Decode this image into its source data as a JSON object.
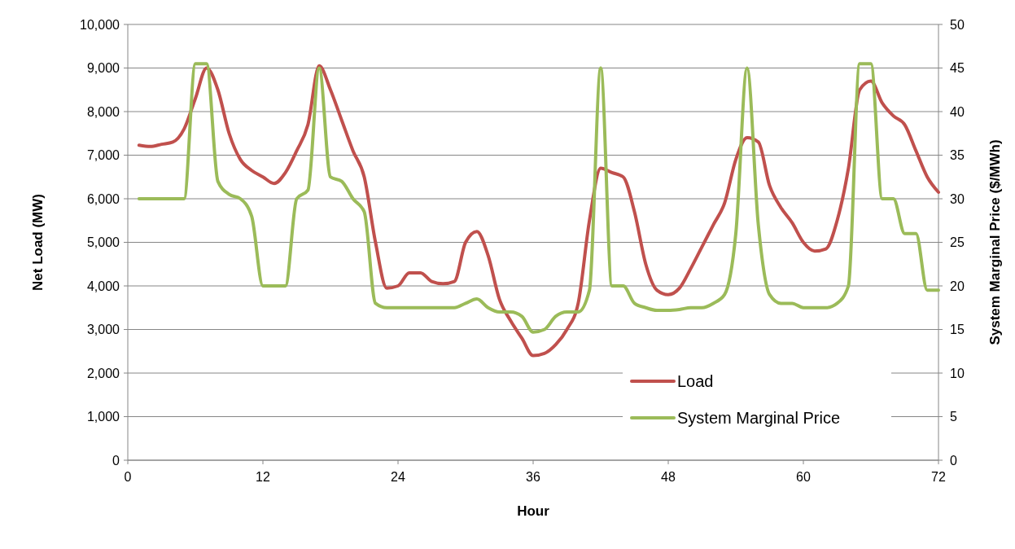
{
  "chart_data": {
    "type": "line",
    "xlabel": "Hour",
    "ylabel": "Net Load (MW)",
    "y2label": "System Marginal Price ($/MWh)",
    "x": [
      1,
      2,
      3,
      4,
      5,
      6,
      7,
      8,
      9,
      10,
      11,
      12,
      13,
      14,
      15,
      16,
      17,
      18,
      19,
      20,
      21,
      22,
      23,
      24,
      25,
      26,
      27,
      28,
      29,
      30,
      31,
      32,
      33,
      34,
      35,
      36,
      37,
      38,
      39,
      40,
      41,
      42,
      43,
      44,
      45,
      46,
      47,
      48,
      49,
      50,
      51,
      52,
      53,
      54,
      55,
      56,
      57,
      58,
      59,
      60,
      61,
      62,
      63,
      64,
      65,
      66,
      67,
      68,
      69,
      70,
      71,
      72
    ],
    "series": [
      {
        "name": "Load",
        "color": "#c0504d",
        "values": [
          7230,
          7200,
          7250,
          7300,
          7600,
          8300,
          9000,
          8500,
          7500,
          6900,
          6650,
          6500,
          6350,
          6600,
          7100,
          7700,
          9050,
          8500,
          7800,
          7100,
          6500,
          5000,
          3950,
          4000,
          4300,
          4300,
          4100,
          4050,
          4100,
          5000,
          5250,
          4700,
          3700,
          3200,
          2800,
          2400,
          2450,
          2650,
          3000,
          3600,
          5500,
          6700,
          6600,
          6500,
          5700,
          4500,
          3900,
          3800,
          3950,
          4400,
          4900,
          5400,
          5900,
          6900,
          7400,
          7300,
          6300,
          5800,
          5450,
          5000,
          4800,
          4850,
          5500,
          6700,
          8500,
          8700,
          8200,
          7900,
          7700,
          7100,
          6500,
          6150
        ]
      },
      {
        "name": "System Marginal Price",
        "color": "#9bbb59",
        "axis": "y2",
        "values": [
          30,
          30,
          30,
          30,
          30,
          45.5,
          45.5,
          32,
          30.5,
          30,
          28,
          20,
          20,
          20,
          30,
          31,
          45,
          32.5,
          32,
          30,
          28.5,
          18,
          17.5,
          17.5,
          17.5,
          17.5,
          17.5,
          17.5,
          17.5,
          18,
          18.5,
          17.5,
          17,
          17,
          16.5,
          14.7,
          15,
          16.5,
          17,
          17,
          19.5,
          45,
          20,
          20,
          18,
          17.5,
          17.2,
          17.2,
          17.3,
          17.5,
          17.5,
          18,
          19,
          26,
          45,
          27,
          19,
          18,
          18,
          17.5,
          17.5,
          17.5,
          18,
          20,
          45.5,
          45.5,
          30,
          30,
          26,
          26,
          19.5,
          19.5
        ]
      }
    ],
    "xlim": [
      0,
      72
    ],
    "xticks": [
      0,
      12,
      24,
      36,
      48,
      60,
      72
    ],
    "ylim": [
      0,
      10000
    ],
    "yticks": [
      {
        "value": 0,
        "label": "0"
      },
      {
        "value": 1000,
        "label": "1,000"
      },
      {
        "value": 2000,
        "label": "2,000"
      },
      {
        "value": 3000,
        "label": "3,000"
      },
      {
        "value": 4000,
        "label": "4,000"
      },
      {
        "value": 5000,
        "label": "5,000"
      },
      {
        "value": 6000,
        "label": "6,000"
      },
      {
        "value": 7000,
        "label": "7,000"
      },
      {
        "value": 8000,
        "label": "8,000"
      },
      {
        "value": 9000,
        "label": "9,000"
      },
      {
        "value": 10000,
        "label": "10,000"
      }
    ],
    "y2lim": [
      0,
      50
    ],
    "y2ticks": [
      0,
      5,
      10,
      15,
      20,
      25,
      30,
      35,
      40,
      45,
      50
    ],
    "grid": "y",
    "legend": "bottom right",
    "line_style": "solid",
    "marker": "none"
  }
}
